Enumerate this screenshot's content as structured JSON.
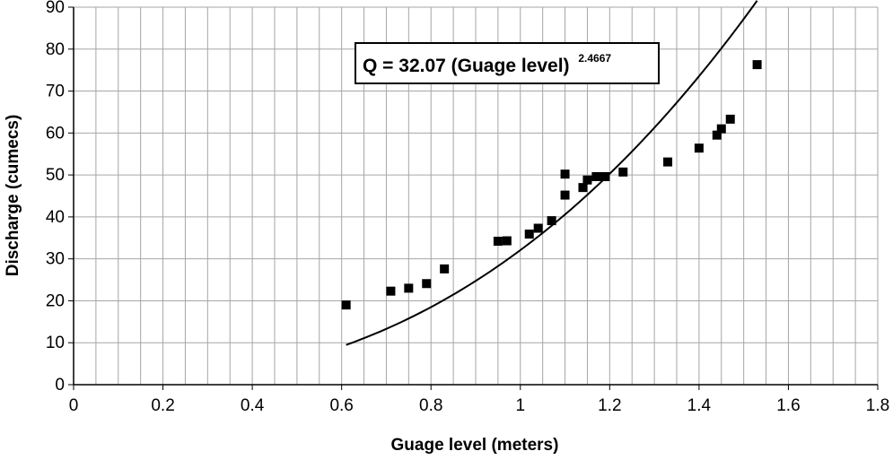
{
  "chart_data": {
    "type": "scatter",
    "title": "",
    "xlabel": "Guage level (meters)",
    "ylabel": "Discharge (cumecs)",
    "xlim": [
      0,
      1.8
    ],
    "ylim": [
      0,
      90
    ],
    "x_major_ticks": [
      "0",
      "0.2",
      "0.4",
      "0.6",
      "0.8",
      "1",
      "1.2",
      "1.4",
      "1.6",
      "1.8"
    ],
    "y_major_ticks": [
      "0",
      "10",
      "20",
      "30",
      "40",
      "50",
      "60",
      "70",
      "80",
      "90"
    ],
    "grid": "on (vertical lines every 0.05 m, horizontal lines every 10 cumecs)",
    "marker": "black-square",
    "series": [
      {
        "x": [
          0.61,
          0.71,
          0.75,
          0.79,
          0.83,
          0.95,
          0.97,
          1.02,
          1.04,
          1.07,
          1.1,
          1.1,
          1.14,
          1.15,
          1.17,
          1.18,
          1.19,
          1.23,
          1.33,
          1.4,
          1.44,
          1.45,
          1.47,
          1.53
        ],
        "y": [
          19.0,
          22.3,
          23.0,
          24.1,
          27.6,
          34.2,
          34.3,
          35.9,
          37.3,
          39.1,
          45.2,
          50.2,
          47.0,
          48.8,
          49.6,
          49.6,
          49.6,
          50.7,
          53.1,
          56.4,
          59.5,
          61.0,
          63.3,
          76.3
        ]
      }
    ],
    "trendline": {
      "type": "power",
      "coefficient": 32.07,
      "exponent": 2.4667,
      "x_range": [
        0.61,
        1.53
      ],
      "color": "#000000"
    },
    "annotation": {
      "prefix": "Q =  32.07 (Guage level)",
      "exponent_text": "2.4667"
    }
  }
}
